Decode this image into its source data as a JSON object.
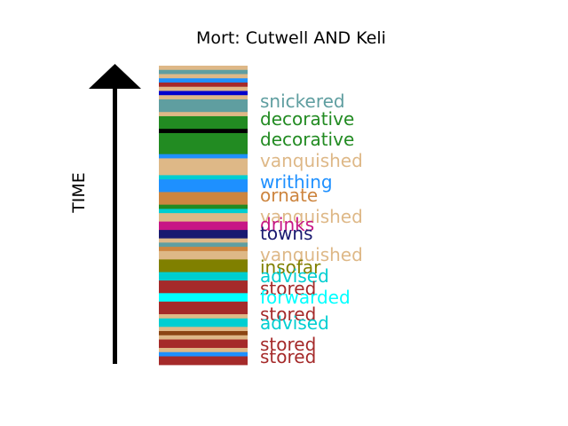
{
  "chart_data": {
    "type": "bar",
    "title": "Mort: Cutwell AND Keli",
    "ylabel": "TIME",
    "stripes": [
      {
        "color": "#deb887",
        "weight": 1
      },
      {
        "color": "#5f9ea0",
        "weight": 1
      },
      {
        "color": "#deb887",
        "weight": 1
      },
      {
        "color": "#1e90ff",
        "weight": 1
      },
      {
        "color": "#a52a2a",
        "weight": 1
      },
      {
        "color": "#deb887",
        "weight": 1
      },
      {
        "color": "#0000cd",
        "weight": 1
      },
      {
        "color": "#deb887",
        "weight": 1
      },
      {
        "color": "#5f9ea0",
        "weight": 3
      },
      {
        "color": "#deb887",
        "weight": 1
      },
      {
        "color": "#228b22",
        "weight": 3
      },
      {
        "color": "#000000",
        "weight": 1
      },
      {
        "color": "#228b22",
        "weight": 5
      },
      {
        "color": "#1e90ff",
        "weight": 1
      },
      {
        "color": "#deb887",
        "weight": 4
      },
      {
        "color": "#00ced1",
        "weight": 1
      },
      {
        "color": "#1e90ff",
        "weight": 3
      },
      {
        "color": "#cd853f",
        "weight": 3
      },
      {
        "color": "#228b22",
        "weight": 1
      },
      {
        "color": "#00ced1",
        "weight": 1
      },
      {
        "color": "#deb887",
        "weight": 2
      },
      {
        "color": "#c71585",
        "weight": 2
      },
      {
        "color": "#191970",
        "weight": 2
      },
      {
        "color": "#deb887",
        "weight": 1
      },
      {
        "color": "#5f9ea0",
        "weight": 1
      },
      {
        "color": "#cd853f",
        "weight": 1
      },
      {
        "color": "#deb887",
        "weight": 2
      },
      {
        "color": "#808000",
        "weight": 3
      },
      {
        "color": "#00ced1",
        "weight": 2
      },
      {
        "color": "#a52a2a",
        "weight": 3
      },
      {
        "color": "#00ffff",
        "weight": 2
      },
      {
        "color": "#a52a2a",
        "weight": 3
      },
      {
        "color": "#deb887",
        "weight": 1
      },
      {
        "color": "#00ced1",
        "weight": 2
      },
      {
        "color": "#deb887",
        "weight": 1
      },
      {
        "color": "#8b4513",
        "weight": 1
      },
      {
        "color": "#deb887",
        "weight": 1
      },
      {
        "color": "#a52a2a",
        "weight": 2
      },
      {
        "color": "#deb887",
        "weight": 1
      },
      {
        "color": "#1e90ff",
        "weight": 1
      },
      {
        "color": "#a52a2a",
        "weight": 2
      }
    ],
    "labels": [
      {
        "text": "snickered",
        "color": "#5f9ea0"
      },
      {
        "text": "decorative",
        "color": "#228b22"
      },
      {
        "text": "decorative",
        "color": "#228b22"
      },
      {
        "text": "vanquished",
        "color": "#deb887"
      },
      {
        "text": "writhing",
        "color": "#1e90ff"
      },
      {
        "text": "ornate",
        "color": "#cd853f"
      },
      {
        "text": "vanquished",
        "color": "#deb887"
      },
      {
        "text": "drinks",
        "color": "#c71585"
      },
      {
        "text": "towns",
        "color": "#191970"
      },
      {
        "text": "vanquished",
        "color": "#deb887"
      },
      {
        "text": "insofar",
        "color": "#808000"
      },
      {
        "text": "advised",
        "color": "#00ced1"
      },
      {
        "text": "stored",
        "color": "#a52a2a"
      },
      {
        "text": "forwarded",
        "color": "#00ffff"
      },
      {
        "text": "stored",
        "color": "#a52a2a"
      },
      {
        "text": "advised",
        "color": "#00ced1"
      },
      {
        "text": "stored",
        "color": "#a52a2a"
      },
      {
        "text": "stored",
        "color": "#a52a2a"
      }
    ]
  }
}
